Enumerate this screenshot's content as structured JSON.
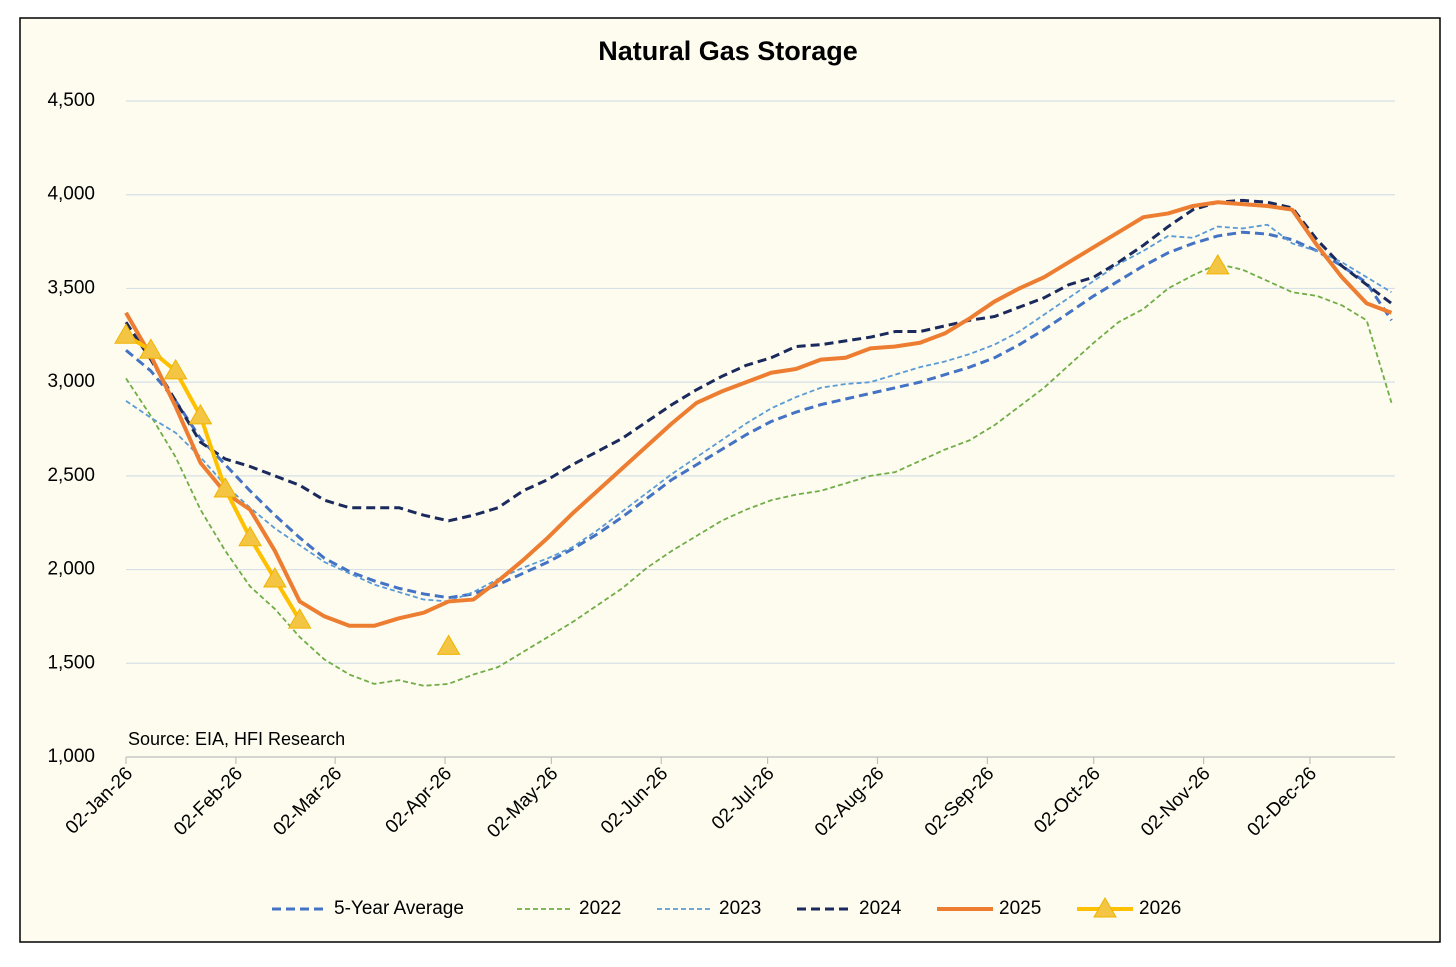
{
  "chart_data": {
    "type": "line",
    "title": "Natural Gas Storage",
    "annotation": "Source: EIA, HFI Research",
    "x": [
      "2026-01-02",
      "2026-01-09",
      "2026-01-16",
      "2026-01-23",
      "2026-01-30",
      "2026-02-06",
      "2026-02-13",
      "2026-02-20",
      "2026-02-27",
      "2026-03-06",
      "2026-03-13",
      "2026-03-20",
      "2026-03-27",
      "2026-04-03",
      "2026-04-10",
      "2026-04-17",
      "2026-04-24",
      "2026-05-01",
      "2026-05-08",
      "2026-05-15",
      "2026-05-22",
      "2026-05-29",
      "2026-06-05",
      "2026-06-12",
      "2026-06-19",
      "2026-06-26",
      "2026-07-03",
      "2026-07-10",
      "2026-07-17",
      "2026-07-24",
      "2026-07-31",
      "2026-08-07",
      "2026-08-14",
      "2026-08-21",
      "2026-08-28",
      "2026-09-04",
      "2026-09-11",
      "2026-09-18",
      "2026-09-25",
      "2026-10-02",
      "2026-10-09",
      "2026-10-16",
      "2026-10-23",
      "2026-10-30",
      "2026-11-06",
      "2026-11-13",
      "2026-11-20",
      "2026-11-27",
      "2026-12-04",
      "2026-12-11",
      "2026-12-18",
      "2026-12-25"
    ],
    "series": [
      {
        "name": "5-Year Average",
        "color": "#4472c4",
        "style": "dashed",
        "values": [
          3170,
          3060,
          2900,
          2700,
          2560,
          2420,
          2290,
          2170,
          2060,
          1990,
          1940,
          1900,
          1870,
          1850,
          1870,
          1920,
          1980,
          2040,
          2110,
          2190,
          2280,
          2380,
          2480,
          2560,
          2640,
          2720,
          2790,
          2840,
          2880,
          2910,
          2940,
          2970,
          3000,
          3040,
          3080,
          3130,
          3200,
          3280,
          3370,
          3460,
          3540,
          3620,
          3690,
          3740,
          3780,
          3800,
          3790,
          3760,
          3700,
          3620,
          3530,
          3330
        ]
      },
      {
        "name": "2022",
        "color": "#70ad47",
        "style": "fine-dashed",
        "values": [
          3020,
          2820,
          2600,
          2320,
          2100,
          1910,
          1790,
          1640,
          1520,
          1440,
          1390,
          1410,
          1380,
          1390,
          1440,
          1480,
          1560,
          1640,
          1720,
          1810,
          1900,
          2010,
          2100,
          2180,
          2260,
          2320,
          2370,
          2400,
          2420,
          2460,
          2500,
          2520,
          2580,
          2640,
          2690,
          2770,
          2870,
          2970,
          3090,
          3210,
          3320,
          3390,
          3500,
          3570,
          3630,
          3600,
          3540,
          3480,
          3460,
          3410,
          3330,
          2890
        ]
      },
      {
        "name": "2023",
        "color": "#5b9bd5",
        "style": "fine-dashed",
        "values": [
          2900,
          2810,
          2730,
          2600,
          2450,
          2330,
          2220,
          2130,
          2040,
          1980,
          1920,
          1880,
          1840,
          1830,
          1880,
          1950,
          2010,
          2060,
          2120,
          2210,
          2310,
          2410,
          2510,
          2600,
          2690,
          2780,
          2860,
          2920,
          2970,
          2990,
          3000,
          3040,
          3080,
          3110,
          3150,
          3200,
          3270,
          3360,
          3450,
          3540,
          3630,
          3700,
          3780,
          3770,
          3830,
          3820,
          3840,
          3740,
          3700,
          3640,
          3560,
          3480
        ]
      },
      {
        "name": "2024",
        "color": "#1b2a5c",
        "style": "dashed",
        "values": [
          3320,
          3120,
          2900,
          2680,
          2590,
          2550,
          2500,
          2450,
          2370,
          2330,
          2330,
          2330,
          2290,
          2260,
          2290,
          2330,
          2420,
          2480,
          2560,
          2630,
          2700,
          2790,
          2880,
          2960,
          3030,
          3090,
          3130,
          3190,
          3200,
          3220,
          3240,
          3270,
          3270,
          3300,
          3330,
          3350,
          3400,
          3450,
          3520,
          3560,
          3640,
          3730,
          3830,
          3920,
          3960,
          3970,
          3960,
          3930,
          3760,
          3620,
          3520,
          3420
        ]
      },
      {
        "name": "2025",
        "color": "#ed7d31",
        "style": "solid",
        "values": [
          3370,
          3140,
          2870,
          2570,
          2410,
          2320,
          2100,
          1830,
          1750,
          1700,
          1700,
          1740,
          1770,
          1830,
          1840,
          1940,
          2050,
          2170,
          2300,
          2420,
          2540,
          2660,
          2780,
          2890,
          2950,
          3000,
          3050,
          3070,
          3120,
          3130,
          3180,
          3190,
          3210,
          3260,
          3340,
          3430,
          3500,
          3560,
          3640,
          3720,
          3800,
          3880,
          3900,
          3940,
          3960,
          3950,
          3940,
          3920,
          3730,
          3560,
          3420,
          3370
        ]
      },
      {
        "name": "2026",
        "color": "#ffc000",
        "style": "solid",
        "marker": "triangle",
        "values": [
          3250,
          3170,
          3060,
          2820,
          2430,
          2170,
          1950,
          1730,
          null,
          null,
          null,
          null,
          null,
          1590,
          null,
          null,
          null,
          null,
          null,
          null,
          null,
          null,
          null,
          null,
          null,
          null,
          null,
          null,
          null,
          null,
          null,
          null,
          null,
          null,
          null,
          null,
          null,
          null,
          null,
          null,
          null,
          null,
          null,
          null,
          3620,
          null,
          null,
          null,
          null,
          null,
          null,
          null
        ]
      }
    ],
    "xlim": [
      "2026-01-02",
      "2026-12-26"
    ],
    "xticks": [
      {
        "value": "2026-01-02",
        "label": "02-Jan-26"
      },
      {
        "value": "2026-02-02",
        "label": "02-Feb-26"
      },
      {
        "value": "2026-03-02",
        "label": "02-Mar-26"
      },
      {
        "value": "2026-04-02",
        "label": "02-Apr-26"
      },
      {
        "value": "2026-05-02",
        "label": "02-May-26"
      },
      {
        "value": "2026-06-02",
        "label": "02-Jun-26"
      },
      {
        "value": "2026-07-02",
        "label": "02-Jul-26"
      },
      {
        "value": "2026-08-02",
        "label": "02-Aug-26"
      },
      {
        "value": "2026-09-02",
        "label": "02-Sep-26"
      },
      {
        "value": "2026-10-02",
        "label": "02-Oct-26"
      },
      {
        "value": "2026-11-02",
        "label": "02-Nov-26"
      },
      {
        "value": "2026-12-02",
        "label": "02-Dec-26"
      }
    ],
    "ylim": [
      1000,
      4500
    ],
    "yticks": [
      {
        "value": 1000,
        "label": "1,000"
      },
      {
        "value": 1500,
        "label": "1,500"
      },
      {
        "value": 2000,
        "label": "2,000"
      },
      {
        "value": 2500,
        "label": "2,500"
      },
      {
        "value": 3000,
        "label": "3,000"
      },
      {
        "value": 3500,
        "label": "3,500"
      },
      {
        "value": 4000,
        "label": "4,000"
      },
      {
        "value": 4500,
        "label": "4,500"
      }
    ],
    "grid": true,
    "legend": "bottom"
  }
}
